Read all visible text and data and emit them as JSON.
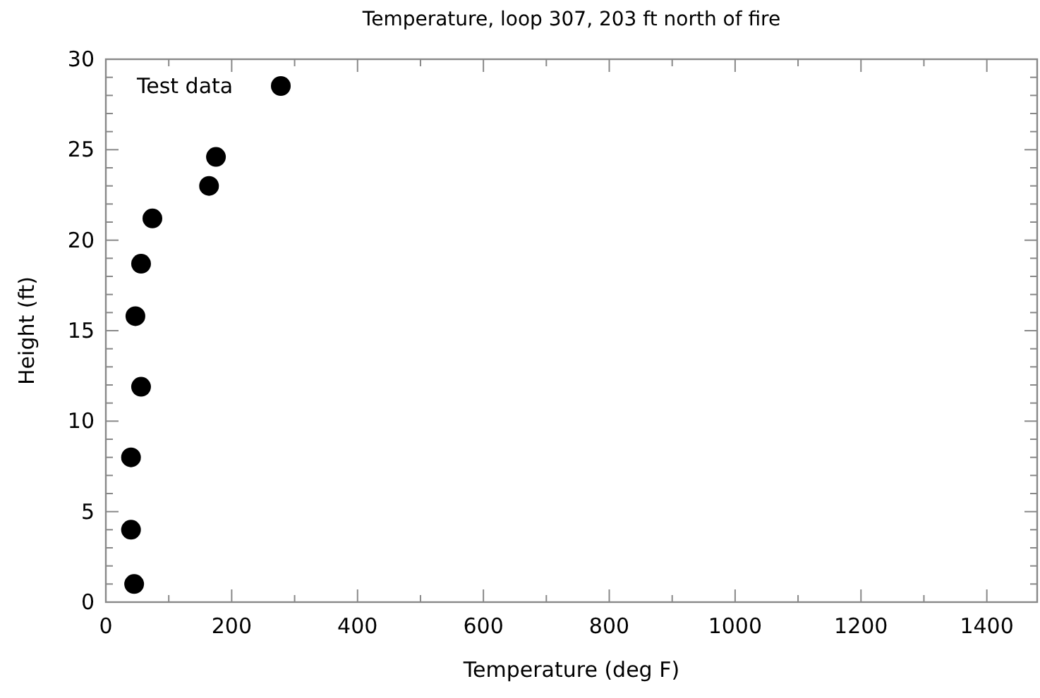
{
  "chart_data": {
    "type": "scatter",
    "title": "Temperature, loop 307, 203 ft north of fire",
    "xlabel": "Temperature (deg F)",
    "ylabel": "Height (ft)",
    "xlim": [
      0,
      1480
    ],
    "xticks": [
      0,
      {
        "value": 100,
        "label": null
      },
      200,
      {
        "value": 300,
        "label": null
      },
      400,
      {
        "value": 500,
        "label": null
      },
      600,
      {
        "value": 700,
        "label": null
      },
      800,
      {
        "value": 900,
        "label": null
      },
      1000,
      {
        "value": 1100,
        "label": null
      },
      1200,
      {
        "value": 1300,
        "label": null
      },
      1400
    ],
    "ylim": [
      0,
      30
    ],
    "yticks": [
      0,
      {
        "value": 1,
        "label": null
      },
      {
        "value": 2,
        "label": null
      },
      {
        "value": 3,
        "label": null
      },
      {
        "value": 4,
        "label": null
      },
      5,
      {
        "value": 6,
        "label": null
      },
      {
        "value": 7,
        "label": null
      },
      {
        "value": 8,
        "label": null
      },
      {
        "value": 9,
        "label": null
      },
      10,
      {
        "value": 11,
        "label": null
      },
      {
        "value": 12,
        "label": null
      },
      {
        "value": 13,
        "label": null
      },
      {
        "value": 14,
        "label": null
      },
      15,
      {
        "value": 16,
        "label": null
      },
      {
        "value": 17,
        "label": null
      },
      {
        "value": 18,
        "label": null
      },
      {
        "value": 19,
        "label": null
      },
      20,
      {
        "value": 21,
        "label": null
      },
      {
        "value": 22,
        "label": null
      },
      {
        "value": 23,
        "label": null
      },
      {
        "value": 24,
        "label": null
      },
      25,
      {
        "value": 26,
        "label": null
      },
      {
        "value": 27,
        "label": null
      },
      {
        "value": 28,
        "label": null
      },
      {
        "value": 29,
        "label": null
      },
      30
    ],
    "marker": "circle",
    "legend": "top left",
    "grid": false,
    "series": [
      {
        "name": "Test data",
        "color": "#000000",
        "x": [
          45,
          40,
          40,
          56,
          47,
          56,
          74,
          164,
          175
        ],
        "values": [
          1.0,
          4.0,
          8.0,
          11.9,
          15.8,
          18.7,
          21.2,
          23.0,
          24.6
        ]
      }
    ]
  }
}
